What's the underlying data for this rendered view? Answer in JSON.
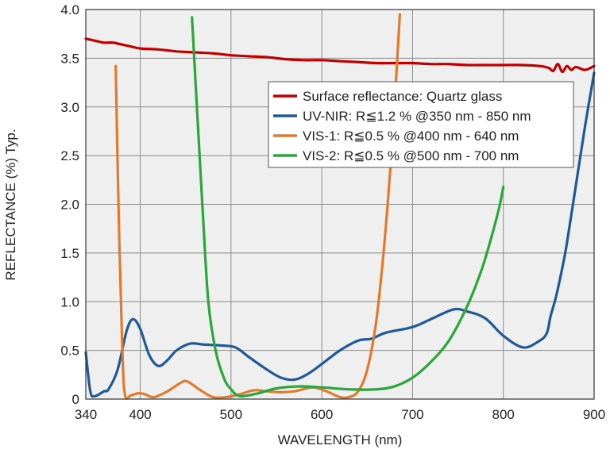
{
  "chart_data": {
    "type": "line",
    "title": "",
    "xlabel": "WAVELENGTH (nm)",
    "ylabel": "REFLECTANCE (%) Typ.",
    "xlim": [
      340,
      900
    ],
    "ylim": [
      0,
      4.0
    ],
    "xticks": [
      340,
      400,
      500,
      600,
      700,
      800,
      900
    ],
    "yticks": [
      0,
      0.5,
      1.0,
      1.5,
      2.0,
      2.5,
      3.0,
      3.5,
      4.0
    ],
    "ytick_labels": [
      "0",
      "0.5",
      "1.0",
      "1.5",
      "2.0",
      "2.5",
      "3.0",
      "3.5",
      "4.0"
    ],
    "grid": true,
    "legend_placement": "upper-right",
    "background": "#efefef",
    "series": [
      {
        "name": "Surface reflectance: Quartz glass",
        "color": "#c00000",
        "x": [
          340,
          350,
          360,
          370,
          380,
          390,
          400,
          420,
          440,
          460,
          480,
          500,
          520,
          540,
          560,
          580,
          600,
          620,
          640,
          660,
          680,
          700,
          720,
          740,
          760,
          780,
          800,
          820,
          840,
          850,
          855,
          860,
          865,
          870,
          875,
          880,
          890,
          900
        ],
        "y": [
          3.7,
          3.68,
          3.66,
          3.66,
          3.64,
          3.62,
          3.6,
          3.59,
          3.57,
          3.56,
          3.55,
          3.53,
          3.52,
          3.51,
          3.49,
          3.48,
          3.48,
          3.47,
          3.46,
          3.45,
          3.45,
          3.45,
          3.44,
          3.44,
          3.43,
          3.43,
          3.43,
          3.43,
          3.42,
          3.4,
          3.37,
          3.44,
          3.36,
          3.42,
          3.38,
          3.41,
          3.38,
          3.42
        ]
      },
      {
        "name": "UV-NIR: R≦1.2 % @350 nm - 850 nm",
        "color": "#1f5a96",
        "x": [
          340,
          345,
          350,
          360,
          365,
          375,
          385,
          392,
          400,
          410,
          420,
          430,
          440,
          455,
          470,
          490,
          505,
          520,
          540,
          555,
          570,
          585,
          600,
          620,
          640,
          655,
          670,
          700,
          720,
          745,
          760,
          780,
          800,
          822,
          840,
          848,
          852,
          858,
          865,
          870,
          880,
          890,
          900
        ],
        "y": [
          0.48,
          0.08,
          0.03,
          0.08,
          0.1,
          0.3,
          0.7,
          0.82,
          0.72,
          0.45,
          0.34,
          0.4,
          0.5,
          0.57,
          0.56,
          0.55,
          0.53,
          0.43,
          0.3,
          0.22,
          0.2,
          0.26,
          0.36,
          0.5,
          0.6,
          0.62,
          0.68,
          0.74,
          0.82,
          0.92,
          0.9,
          0.83,
          0.65,
          0.53,
          0.6,
          0.68,
          0.85,
          1.05,
          1.35,
          1.6,
          2.2,
          2.8,
          3.35
        ]
      },
      {
        "name": "VIS-1: R≦0.5 % @400 nm - 640 nm",
        "color": "#e07b2e",
        "x": [
          373,
          376,
          380,
          383,
          390,
          398,
          405,
          415,
          430,
          445,
          452,
          465,
          480,
          495,
          510,
          525,
          540,
          555,
          570,
          590,
          605,
          620,
          630,
          640,
          650,
          660,
          668,
          675,
          680,
          686
        ],
        "y": [
          3.42,
          2.0,
          0.6,
          0.05,
          0.04,
          0.06,
          0.05,
          0.02,
          0.08,
          0.17,
          0.18,
          0.1,
          0.02,
          0.02,
          0.05,
          0.09,
          0.08,
          0.07,
          0.08,
          0.12,
          0.08,
          0.02,
          0.02,
          0.08,
          0.3,
          0.8,
          1.5,
          2.3,
          3.0,
          3.95
        ]
      },
      {
        "name": "VIS-2: R≦0.5 % @500 nm - 700 nm",
        "color": "#2aa63a",
        "x": [
          457,
          463,
          469,
          475,
          483,
          492,
          500,
          510,
          530,
          550,
          575,
          600,
          630,
          660,
          680,
          700,
          720,
          740,
          760,
          775,
          785,
          795,
          800
        ],
        "y": [
          3.92,
          2.9,
          1.9,
          1.0,
          0.5,
          0.22,
          0.1,
          0.03,
          0.06,
          0.11,
          0.13,
          0.12,
          0.1,
          0.1,
          0.13,
          0.22,
          0.38,
          0.6,
          0.95,
          1.3,
          1.6,
          1.95,
          2.18
        ]
      }
    ]
  }
}
